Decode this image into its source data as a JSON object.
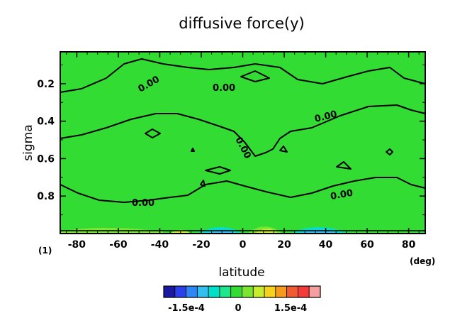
{
  "chart_data": {
    "type": "heatmap",
    "title": "diffusive force(y)",
    "xlabel": "latitude",
    "ylabel": "sigma",
    "x_unit": "(deg)",
    "corner_label": "(1)",
    "xlim": [
      -88,
      88
    ],
    "ylim": [
      1.0,
      0.03
    ],
    "x_ticks": [
      "-80",
      "-60",
      "-40",
      "-20",
      "0",
      "20",
      "40",
      "60",
      "80"
    ],
    "y_ticks": [
      "0.2",
      "0.4",
      "0.6",
      "0.8"
    ],
    "contour_level_labels": [
      "0.00",
      "0.00",
      "0.00",
      "0.00",
      "0.00",
      "0.00"
    ],
    "colorbar": {
      "tick_labels": [
        "-1.5e-4",
        "0",
        "1.5e-4"
      ],
      "colors": [
        "#1a1aa0",
        "#2a40e8",
        "#2f87f5",
        "#33c0f0",
        "#00e0c8",
        "#1ee68c",
        "#32dc32",
        "#7ae632",
        "#c8ec30",
        "#f5d21e",
        "#f59a1e",
        "#f05a32",
        "#f53a3a",
        "#f5a0a0"
      ]
    },
    "field_color": "#32dc32"
  }
}
